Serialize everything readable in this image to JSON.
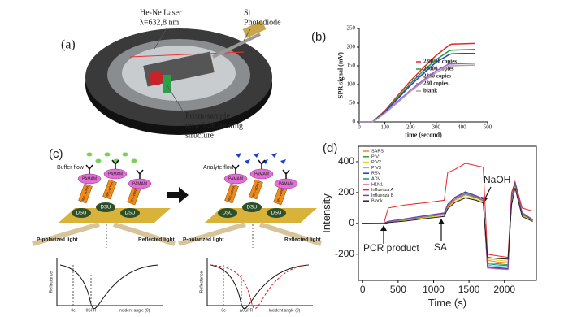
{
  "panel_labels": [
    "(a)",
    "(b)",
    "(c)",
    "(d)"
  ],
  "panel_a": {
    "laser": [
      "He-Ne Laser",
      "λ=632,8 nm"
    ],
    "detector": [
      "Si",
      "Photodiode"
    ],
    "stage": [
      "Prism-sample",
      "on a θ-2θ rotating",
      "structure"
    ]
  },
  "panel_c": {
    "buffer_flow": "Buffer flow",
    "analyte_flow": "Analyte flow",
    "pamam": "PAMAM",
    "dna": "NH₂-pDNA",
    "dsu": "DSU",
    "p_light": "P-polarized light",
    "reflected": "Reflected light",
    "reflectance": "Reflectance",
    "theta_c": "θc",
    "theta_spr": "θSPR",
    "delta_theta": "ΔθSPR",
    "incident": "Incident angle (θ)"
  },
  "chart_data": [
    {
      "type": "line",
      "xlabel": "time (second)",
      "ylabel": "SPR signal (mV)",
      "x": [
        0,
        50,
        60,
        100,
        150,
        200,
        250,
        300,
        350,
        360,
        400,
        450
      ],
      "series": [
        {
          "name": "230000 copies",
          "color": "#e8252a",
          "values": [
            0,
            0,
            5,
            30,
            70,
            110,
            145,
            178,
            205,
            208,
            209,
            210
          ]
        },
        {
          "name": "23000 copies",
          "color": "#1f9e3a",
          "values": [
            0,
            0,
            4,
            28,
            65,
            103,
            137,
            167,
            190,
            192,
            193,
            194
          ]
        },
        {
          "name": "2300 copies",
          "color": "#2b3fc4",
          "values": [
            0,
            0,
            4,
            27,
            62,
            98,
            130,
            160,
            180,
            182,
            183,
            183
          ]
        },
        {
          "name": "230 copies",
          "color": "#a05ac8",
          "values": [
            0,
            0,
            3,
            24,
            55,
            85,
            112,
            137,
            155,
            155,
            156,
            157
          ]
        },
        {
          "name": "blank",
          "color": "#b0a0a8",
          "values": [
            0,
            0,
            3,
            23,
            52,
            82,
            108,
            132,
            150,
            150,
            151,
            152
          ]
        }
      ],
      "xlim": [
        0,
        500
      ],
      "xticks": [
        0,
        100,
        200,
        300,
        400,
        500
      ],
      "ylim": [
        0,
        250
      ],
      "yticks": [
        0,
        50,
        100,
        150,
        200,
        250
      ],
      "grid": false
    },
    {
      "type": "line",
      "xlabel": "Time (s)",
      "ylabel": "Intensity",
      "annotations": [
        "PCR product",
        "SA",
        "NaOH"
      ],
      "x": [
        0,
        300,
        360,
        600,
        900,
        1150,
        1200,
        1300,
        1450,
        1600,
        1700,
        1760,
        1900,
        2050,
        2100,
        2150,
        2250,
        2400
      ],
      "series": [
        {
          "name": "SARS",
          "color": "#f08a1c",
          "values": [
            0,
            0,
            8,
            22,
            42,
            58,
            105,
            150,
            185,
            165,
            145,
            -240,
            -250,
            -255,
            140,
            250,
            55,
            18
          ]
        },
        {
          "name": "PIV1",
          "color": "#2ca02c",
          "values": [
            0,
            0,
            10,
            25,
            45,
            60,
            115,
            160,
            195,
            172,
            150,
            -255,
            -262,
            -268,
            150,
            255,
            60,
            20
          ]
        },
        {
          "name": "PIV2",
          "color": "#e6d21e",
          "values": [
            0,
            -2,
            6,
            18,
            38,
            52,
            100,
            140,
            175,
            155,
            138,
            -230,
            -240,
            -245,
            130,
            240,
            50,
            15
          ]
        },
        {
          "name": "PIV3",
          "color": "#5ec8e6",
          "values": [
            0,
            0,
            12,
            28,
            48,
            64,
            120,
            165,
            200,
            175,
            155,
            -270,
            -278,
            -282,
            160,
            262,
            65,
            22
          ]
        },
        {
          "name": "RSV",
          "color": "#1f3fa0",
          "values": [
            0,
            2,
            14,
            30,
            52,
            68,
            125,
            170,
            205,
            180,
            160,
            -280,
            -288,
            -292,
            170,
            265,
            70,
            25
          ]
        },
        {
          "name": "ADV",
          "color": "#2a8c8c",
          "values": [
            0,
            0,
            9,
            24,
            44,
            59,
            112,
            158,
            192,
            170,
            148,
            -262,
            -270,
            -274,
            155,
            258,
            62,
            21
          ]
        },
        {
          "name": "H1N1",
          "color": "#e377c2",
          "values": [
            0,
            1,
            11,
            27,
            47,
            62,
            118,
            162,
            198,
            176,
            153,
            -290,
            -296,
            -300,
            165,
            270,
            68,
            24
          ]
        },
        {
          "name": "Influenza A",
          "color": "#e8252a",
          "values": [
            0,
            0,
            100,
            120,
            135,
            150,
            330,
            350,
            390,
            375,
            365,
            -200,
            -210,
            -220,
            200,
            270,
            100,
            80
          ]
        },
        {
          "name": "Influenza B",
          "color": "#7b3fa0",
          "values": [
            0,
            0,
            13,
            29,
            50,
            66,
            122,
            168,
            202,
            178,
            158,
            -285,
            -292,
            -296,
            168,
            268,
            66,
            23
          ]
        },
        {
          "name": "Blank",
          "color": "#222222",
          "values": [
            0,
            -3,
            5,
            15,
            32,
            45,
            95,
            135,
            165,
            150,
            132,
            -220,
            -228,
            -232,
            120,
            230,
            45,
            12
          ]
        }
      ],
      "xlim": [
        -60,
        2450
      ],
      "xticks": [
        0,
        500,
        1000,
        1500,
        2000
      ],
      "ylim": [
        -370,
        500
      ],
      "yticks": [
        -200,
        0,
        200,
        400
      ],
      "grid": false
    }
  ]
}
